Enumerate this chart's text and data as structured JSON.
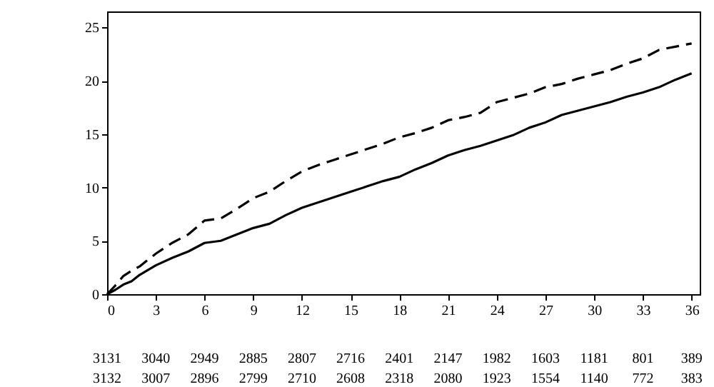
{
  "chart_data": {
    "type": "line",
    "xlim": [
      0,
      36.5
    ],
    "xticks": [
      0,
      3,
      6,
      9,
      12,
      15,
      18,
      21,
      24,
      27,
      30,
      33,
      36
    ],
    "ylim": [
      0,
      26.5
    ],
    "yticks": [
      0,
      5,
      10,
      15,
      20,
      25
    ],
    "marker": "none",
    "series": [
      {
        "color": "#000000",
        "line_style": "dashed",
        "x": [
          0,
          0.5,
          1,
          1.5,
          2,
          3,
          4,
          5,
          6,
          7,
          8,
          9,
          10,
          11,
          12,
          13,
          14,
          15,
          16,
          17,
          18,
          19,
          20,
          21,
          22,
          23,
          24,
          25,
          26,
          27,
          28,
          29,
          30,
          31,
          32,
          33,
          34,
          35,
          36
        ],
        "values": [
          0,
          0.8,
          1.7,
          2.2,
          2.6,
          3.8,
          4.8,
          5.6,
          6.9,
          7.1,
          8.0,
          9.0,
          9.6,
          10.6,
          11.5,
          12.1,
          12.6,
          13.1,
          13.6,
          14.1,
          14.7,
          15.1,
          15.6,
          16.3,
          16.6,
          17.0,
          18.0,
          18.4,
          18.8,
          19.4,
          19.7,
          20.2,
          20.6,
          21.0,
          21.6,
          22.1,
          22.9,
          23.2,
          23.5
        ]
      },
      {
        "color": "#000000",
        "line_style": "solid",
        "x": [
          0,
          0.5,
          1,
          1.5,
          2,
          3,
          4,
          5,
          6,
          7,
          8,
          9,
          10,
          11,
          12,
          13,
          14,
          15,
          16,
          17,
          18,
          19,
          20,
          21,
          22,
          23,
          24,
          25,
          26,
          27,
          28,
          29,
          30,
          31,
          32,
          33,
          34,
          35,
          36
        ],
        "values": [
          0,
          0.4,
          0.9,
          1.2,
          1.8,
          2.7,
          3.4,
          4.0,
          4.8,
          5.0,
          5.6,
          6.2,
          6.6,
          7.4,
          8.1,
          8.6,
          9.1,
          9.6,
          10.1,
          10.6,
          11.0,
          11.7,
          12.3,
          13.0,
          13.5,
          13.9,
          14.4,
          14.9,
          15.6,
          16.1,
          16.8,
          17.2,
          17.6,
          18.0,
          18.5,
          18.9,
          19.4,
          20.1,
          20.7
        ]
      }
    ],
    "annotations": [
      "3131",
      "3040",
      "2949",
      "2885",
      "2807",
      "2716",
      "2401",
      "2147",
      "1982",
      "1603",
      "1181",
      "801",
      "389",
      "3132",
      "3007",
      "2896",
      "2799",
      "2710",
      "2608",
      "2318",
      "2080",
      "1923",
      "1554",
      "1140",
      "772",
      "383"
    ]
  }
}
